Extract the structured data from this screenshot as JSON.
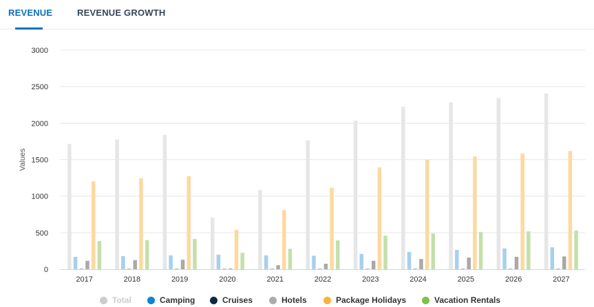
{
  "tabs": [
    {
      "label": "REVENUE",
      "active": true
    },
    {
      "label": "REVENUE GROWTH",
      "active": false
    }
  ],
  "colors": {
    "tab_active": "#0a6fbd",
    "tab_inactive": "#33465a",
    "grid": "#e6e6e6"
  },
  "chart_data": {
    "type": "bar",
    "ylabel": "Values",
    "xlabel": "",
    "ylim": [
      0,
      3000
    ],
    "yticks": [
      0,
      500,
      1000,
      1500,
      2000,
      2500,
      3000
    ],
    "grid": true,
    "legend_position": "bottom",
    "categories": [
      "2017",
      "2018",
      "2019",
      "2020",
      "2021",
      "2022",
      "2023",
      "2024",
      "2025",
      "2026",
      "2027"
    ],
    "series": [
      {
        "name": "Total",
        "color": "#e6e6e6",
        "legend_color": "#cccccc",
        "active": false,
        "values": [
          1715,
          1775,
          1840,
          705,
          1085,
          1765,
          2035,
          2225,
          2285,
          2345,
          2405
        ]
      },
      {
        "name": "Camping",
        "color": "#a6d0f0",
        "legend_color": "#0a84d4",
        "active": true,
        "values": [
          170,
          180,
          190,
          200,
          190,
          185,
          210,
          235,
          265,
          285,
          300
        ]
      },
      {
        "name": "Cruises",
        "color": "#9aa7b5",
        "legend_color": "#0c2a42",
        "active": true,
        "values": [
          2,
          2,
          2,
          1,
          1,
          1,
          2,
          2,
          2,
          2,
          2
        ]
      },
      {
        "name": "Hotels",
        "color": "#a9a9a9",
        "legend_color": "#ababab",
        "active": true,
        "values": [
          115,
          125,
          130,
          10,
          55,
          75,
          115,
          140,
          160,
          170,
          175
        ]
      },
      {
        "name": "Package Holidays",
        "color": "#fdd9a0",
        "legend_color": "#f9b33a",
        "active": true,
        "values": [
          1205,
          1245,
          1275,
          540,
          810,
          1115,
          1395,
          1500,
          1545,
          1585,
          1620
        ]
      },
      {
        "name": "Vacation Rentals",
        "color": "#c4e0ab",
        "legend_color": "#7cc24a",
        "active": true,
        "values": [
          385,
          400,
          415,
          225,
          280,
          395,
          460,
          490,
          510,
          520,
          530
        ]
      }
    ]
  }
}
